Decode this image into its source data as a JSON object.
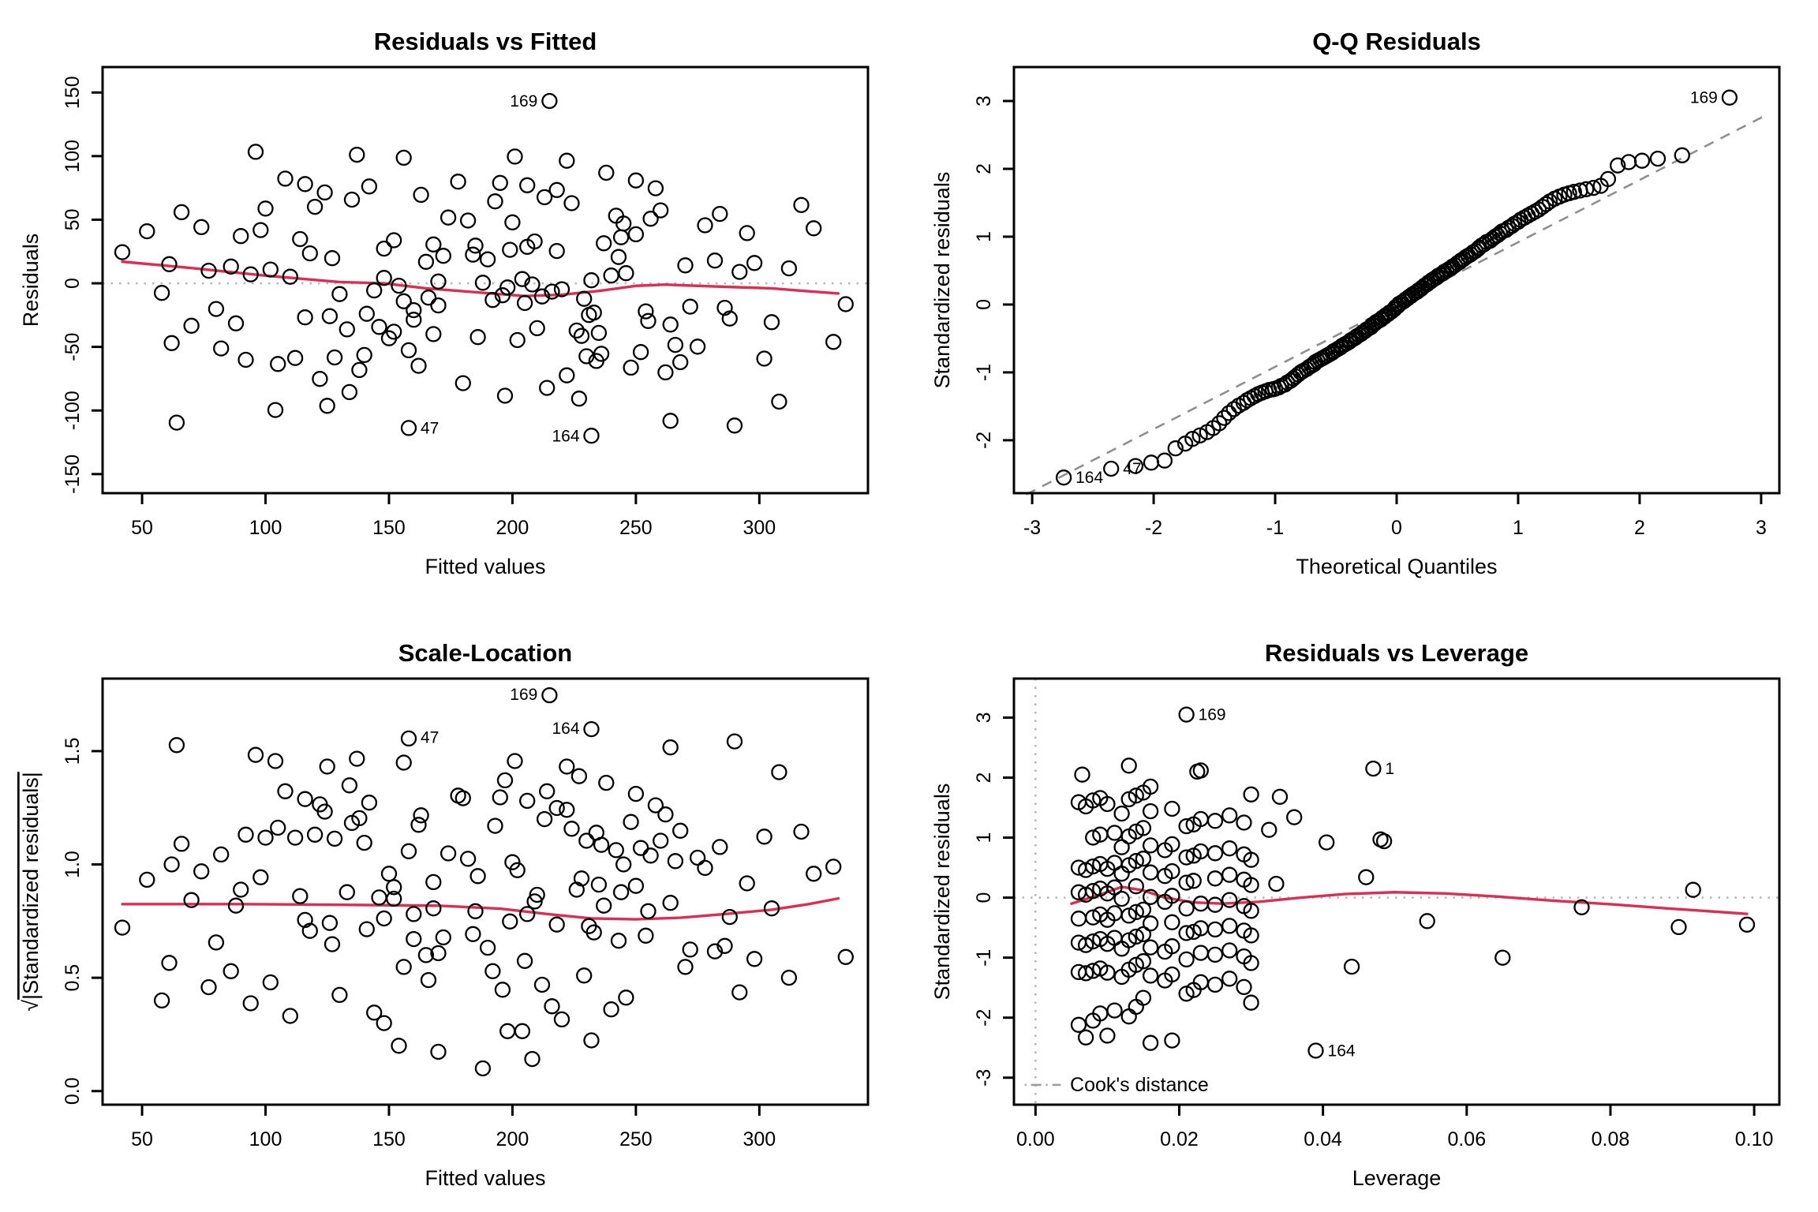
{
  "figure_title": "Linear model diagnostic plots (2x2)",
  "chart_data": {
    "type": "scatter",
    "n": 160,
    "note": "Four R lm() diagnostic panels sharing one set of observations. resid = std_resid * residual_scale_sigma; scale_location_y = sqrt(|std_resid|); qq pairs sorted std_resid with qq_theoretical_quantiles.",
    "residual_scale_sigma": 47,
    "colors": {
      "point": "#000000",
      "smooth": "#DE2D55",
      "reference": "#b9b9b9",
      "qq_line": "#8f8f8f",
      "cooks_legend": "#9d9d9d"
    },
    "observations": {
      "fitted": [
        232,
        288,
        42,
        215,
        160,
        118,
        96,
        255,
        184,
        137,
        305,
        172,
        201,
        88,
        243,
        156,
        264,
        127,
        222,
        70,
        190,
        238,
        146,
        282,
        108,
        210,
        165,
        250,
        133,
        298,
        178,
        226,
        61,
        195,
        152,
        270,
        116,
        235,
        86,
        206,
        168,
        312,
        142,
        228,
        102,
        258,
        186,
        77,
        218,
        150,
        292,
        124,
        202,
        246,
        163,
        330,
        94,
        213,
        62,
        240,
        135,
        266,
        110,
        193,
        275,
        148,
        224,
        82,
        204,
        317,
        158,
        232,
        120,
        252,
        170,
        100,
        236,
        188,
        260,
        140,
        208,
        66,
        230,
        154,
        284,
        128,
        198,
        242,
        112,
        220,
        174,
        302,
        144,
        256,
        92,
        216,
        182,
        234,
        58,
        200,
        268,
        130,
        245,
        105,
        196,
        278,
        162,
        212,
        74,
        248,
        166,
        322,
        138,
        229,
        98,
        262,
        192,
        52,
        222,
        156,
        295,
        122,
        205,
        250,
        180,
        335,
        90,
        214,
        170,
        244,
        134,
        272,
        114,
        197,
        286,
        152,
        227,
        80,
        209,
        308,
        160,
        237,
        125,
        254,
        168,
        104,
        233,
        185,
        264,
        141,
        206,
        64,
        231,
        148,
        290,
        126,
        199,
        158,
        116,
        218
      ],
      "std_resid": [
        -2.55,
        -0.59,
        0.52,
        3.05,
        -0.61,
        0.5,
        2.2,
        -0.63,
        0.48,
        2.15,
        -0.65,
        0.46,
        2.12,
        -0.67,
        0.44,
        2.1,
        -0.69,
        0.42,
        2.05,
        -0.71,
        0.4,
        1.85,
        -0.73,
        0.38,
        1.75,
        -0.75,
        0.36,
        1.72,
        -0.77,
        0.34,
        1.7,
        -0.79,
        0.32,
        1.68,
        -0.81,
        0.3,
        1.66,
        -0.83,
        0.28,
        1.64,
        -0.85,
        0.25,
        1.62,
        -0.88,
        0.23,
        1.59,
        -0.9,
        0.21,
        1.56,
        -0.92,
        0.19,
        1.52,
        -0.95,
        0.17,
        1.48,
        -0.98,
        0.15,
        1.44,
        -1.0,
        0.13,
        1.4,
        -1.03,
        0.11,
        1.37,
        -1.06,
        0.09,
        1.34,
        -1.09,
        0.07,
        1.31,
        -1.12,
        0.05,
        1.28,
        -1.15,
        0.03,
        1.25,
        -1.18,
        0.01,
        1.22,
        -1.2,
        -0.02,
        1.19,
        -1.22,
        -0.04,
        1.16,
        -1.24,
        -0.07,
        1.13,
        -1.25,
        -0.1,
        1.1,
        -1.26,
        -0.12,
        1.08,
        -1.28,
        -0.14,
        1.05,
        -1.3,
        -0.16,
        1.02,
        -1.32,
        -0.18,
        1.0,
        -1.35,
        -0.2,
        0.97,
        -1.38,
        -0.22,
        0.94,
        -1.41,
        -0.24,
        0.92,
        -1.45,
        -0.26,
        0.89,
        -1.49,
        -0.28,
        0.87,
        -1.54,
        -0.3,
        0.84,
        -1.6,
        -0.33,
        0.82,
        -1.67,
        -0.35,
        0.79,
        -1.75,
        -0.37,
        0.77,
        -1.82,
        -0.39,
        0.74,
        -1.88,
        -0.41,
        0.72,
        -1.93,
        -0.43,
        0.7,
        -1.98,
        -0.45,
        0.67,
        -2.05,
        -0.47,
        0.65,
        -2.12,
        -0.49,
        0.63,
        -2.3,
        -0.51,
        0.61,
        -2.33,
        -0.53,
        0.58,
        -2.38,
        -0.55,
        0.56,
        -2.42,
        -0.57,
        0.54
      ],
      "leverage": [
        0.039,
        0.021,
        0.008,
        0.021,
        0.015,
        0.006,
        0.013,
        0.03,
        0.01,
        0.047,
        0.014,
        0.007,
        0.023,
        0.011,
        0.019,
        0.0225,
        0.009,
        0.016,
        0.0065,
        0.013,
        0.012,
        0.016,
        0.008,
        0.027,
        0.015,
        0.006,
        0.018,
        0.03,
        0.01,
        0.046,
        0.014,
        0.007,
        0.025,
        0.034,
        0.019,
        0.029,
        0.009,
        0.016,
        0.022,
        0.013,
        0.012,
        0.021,
        0.008,
        0.027,
        0.0335,
        0.006,
        0.018,
        0.03,
        0.01,
        0.023,
        0.014,
        0.007,
        0.025,
        0.011,
        0.019,
        0.029,
        0.009,
        0.016,
        0.065,
        0.0915,
        0.012,
        0.021,
        0.008,
        0.027,
        0.015,
        0.006,
        0.036,
        0.03,
        0.01,
        0.023,
        0.014,
        0.007,
        0.025,
        0.044,
        0.019,
        0.029,
        0.009,
        0.016,
        0.022,
        0.013,
        0.012,
        0.021,
        0.008,
        0.027,
        0.015,
        0.006,
        0.018,
        0.0325,
        0.01,
        0.023,
        0.014,
        0.007,
        0.025,
        0.011,
        0.019,
        0.029,
        0.009,
        0.016,
        0.076,
        0.013,
        0.012,
        0.021,
        0.008,
        0.027,
        0.015,
        0.048,
        0.018,
        0.03,
        0.0485,
        0.023,
        0.014,
        0.0405,
        0.025,
        0.011,
        0.019,
        0.029,
        0.009,
        0.016,
        0.022,
        0.013,
        0.012,
        0.021,
        0.008,
        0.027,
        0.015,
        0.006,
        0.018,
        0.03,
        0.01,
        0.023,
        0.014,
        0.0545,
        0.025,
        0.011,
        0.019,
        0.029,
        0.009,
        0.016,
        0.022,
        0.013,
        0.099,
        0.021,
        0.008,
        0.027,
        0.015,
        0.006,
        0.0895,
        0.03,
        0.01,
        0.023,
        0.014,
        0.007,
        0.025,
        0.011,
        0.019,
        0.029,
        0.009,
        0.016,
        0.022,
        0.013
      ]
    },
    "qq_theoretical_quantiles": [
      -2.74,
      -2.35,
      -2.15,
      -2.02,
      -1.91,
      -1.82,
      -1.74,
      -1.68,
      -1.62,
      -1.56,
      -1.51,
      -1.46,
      -1.42,
      -1.38,
      -1.34,
      -1.3,
      -1.26,
      -1.23,
      -1.2,
      -1.17,
      -1.14,
      -1.11,
      -1.08,
      -1.05,
      -1.02,
      -1.0,
      -0.97,
      -0.95,
      -0.92,
      -0.9,
      -0.87,
      -0.85,
      -0.83,
      -0.81,
      -0.79,
      -0.77,
      -0.74,
      -0.72,
      -0.7,
      -0.68,
      -0.67,
      -0.65,
      -0.63,
      -0.61,
      -0.59,
      -0.57,
      -0.55,
      -0.53,
      -0.52,
      -0.5,
      -0.48,
      -0.46,
      -0.45,
      -0.43,
      -0.41,
      -0.39,
      -0.38,
      -0.36,
      -0.34,
      -0.33,
      -0.31,
      -0.29,
      -0.28,
      -0.26,
      -0.25,
      -0.23,
      -0.21,
      -0.2,
      -0.18,
      -0.17,
      -0.15,
      -0.13,
      -0.12,
      -0.1,
      -0.09,
      -0.07,
      -0.06,
      -0.04,
      -0.02,
      -0.01,
      0.01,
      0.02,
      0.04,
      0.06,
      0.07,
      0.09,
      0.1,
      0.12,
      0.13,
      0.15,
      0.17,
      0.18,
      0.2,
      0.21,
      0.23,
      0.25,
      0.26,
      0.28,
      0.29,
      0.31,
      0.33,
      0.34,
      0.36,
      0.38,
      0.39,
      0.41,
      0.43,
      0.45,
      0.46,
      0.48,
      0.5,
      0.52,
      0.53,
      0.55,
      0.57,
      0.59,
      0.61,
      0.63,
      0.65,
      0.67,
      0.68,
      0.7,
      0.72,
      0.74,
      0.77,
      0.79,
      0.81,
      0.83,
      0.85,
      0.87,
      0.9,
      0.92,
      0.95,
      0.97,
      1.0,
      1.02,
      1.05,
      1.08,
      1.11,
      1.14,
      1.17,
      1.2,
      1.23,
      1.26,
      1.3,
      1.34,
      1.38,
      1.42,
      1.46,
      1.51,
      1.56,
      1.62,
      1.68,
      1.74,
      1.82,
      1.91,
      2.02,
      2.15,
      2.35,
      2.74
    ],
    "panels": [
      {
        "key": "rvf",
        "title": "Residuals vs Fitted",
        "xlabel": "Fitted values",
        "ylabel": "Residuals",
        "x_source": "fitted",
        "y_source": "resid",
        "xlim": [
          34,
          344
        ],
        "ylim": [
          -165,
          170
        ],
        "xticks": [
          50,
          100,
          150,
          200,
          250,
          300
        ],
        "xtick_labels": [
          "50",
          "100",
          "150",
          "200",
          "250",
          "300"
        ],
        "yticks": [
          -150,
          -100,
          -50,
          0,
          50,
          100,
          150
        ],
        "ytick_labels": [
          "-150",
          "-100",
          "-50",
          "0",
          "50",
          "100",
          "150"
        ],
        "ref_lines": [
          {
            "type": "h",
            "v": 0,
            "dash": "dotted"
          }
        ],
        "smooth": [
          [
            42,
            17
          ],
          [
            70,
            12
          ],
          [
            100,
            6
          ],
          [
            130,
            1
          ],
          [
            148,
            0
          ],
          [
            165,
            -4
          ],
          [
            185,
            -7
          ],
          [
            205,
            -10
          ],
          [
            220,
            -9
          ],
          [
            235,
            -6
          ],
          [
            250,
            -2
          ],
          [
            262,
            -1
          ],
          [
            275,
            -2
          ],
          [
            290,
            -3
          ],
          [
            305,
            -4
          ],
          [
            318,
            -6
          ],
          [
            332,
            -8
          ]
        ],
        "annotations": [
          {
            "label": "169",
            "x": 215,
            "y": 143.4,
            "side": "left"
          },
          {
            "label": "47",
            "x": 158,
            "y": -113.7,
            "side": "right"
          },
          {
            "label": "164",
            "x": 232,
            "y": -119.9,
            "side": "left"
          }
        ]
      },
      {
        "key": "qq",
        "title": "Q-Q Residuals",
        "xlabel": "Theoretical Quantiles",
        "ylabel": "Standardized residuals",
        "x_source": "qq_x",
        "y_source": "std_sorted",
        "xlim": [
          -3.15,
          3.15
        ],
        "ylim": [
          -2.78,
          3.5
        ],
        "xticks": [
          -3,
          -2,
          -1,
          0,
          1,
          2,
          3
        ],
        "xtick_labels": [
          "-3",
          "-2",
          "-1",
          "0",
          "1",
          "2",
          "3"
        ],
        "yticks": [
          -2,
          -1,
          0,
          1,
          2,
          3
        ],
        "ytick_labels": [
          "-2",
          "-1",
          "0",
          "1",
          "2",
          "3"
        ],
        "ref_lines": [
          {
            "type": "seg",
            "x1": -3.05,
            "y1": -2.8,
            "x2": 3.05,
            "y2": 2.8,
            "dash": "dashed"
          }
        ],
        "smooth": null,
        "annotations": [
          {
            "label": "169",
            "x": 2.74,
            "y": 3.05,
            "side": "left"
          },
          {
            "label": "164",
            "x": -2.74,
            "y": -2.55,
            "side": "right"
          },
          {
            "label": "47",
            "x": -2.35,
            "y": -2.42,
            "side": "right"
          }
        ]
      },
      {
        "key": "sl",
        "title": "Scale-Location",
        "xlabel": "Fitted values",
        "ylabel": "√|Standardized residuals|",
        "ylabel_sqrt": true,
        "x_source": "fitted",
        "y_source": "sqrt_abs_std",
        "xlim": [
          34,
          344
        ],
        "ylim": [
          -0.06,
          1.82
        ],
        "xticks": [
          50,
          100,
          150,
          200,
          250,
          300
        ],
        "xtick_labels": [
          "50",
          "100",
          "150",
          "200",
          "250",
          "300"
        ],
        "yticks": [
          0,
          0.5,
          1,
          1.5
        ],
        "ytick_labels": [
          "0.0",
          "0.5",
          "1.0",
          "1.5"
        ],
        "ref_lines": [],
        "smooth": [
          [
            42,
            0.825
          ],
          [
            90,
            0.825
          ],
          [
            130,
            0.822
          ],
          [
            170,
            0.818
          ],
          [
            195,
            0.805
          ],
          [
            215,
            0.78
          ],
          [
            232,
            0.762
          ],
          [
            250,
            0.758
          ],
          [
            268,
            0.765
          ],
          [
            285,
            0.78
          ],
          [
            305,
            0.8
          ],
          [
            320,
            0.825
          ],
          [
            332,
            0.85
          ]
        ],
        "annotations": [
          {
            "label": "169",
            "x": 215,
            "y": 1.75,
            "side": "left"
          },
          {
            "label": "47",
            "x": 158,
            "y": 1.56,
            "side": "right"
          },
          {
            "label": "164",
            "x": 232,
            "y": 1.6,
            "side": "left"
          }
        ]
      },
      {
        "key": "rvl",
        "title": "Residuals vs Leverage",
        "xlabel": "Leverage",
        "ylabel": "Standardized residuals",
        "x_source": "leverage",
        "y_source": "std",
        "xlim": [
          -0.003,
          0.1035
        ],
        "ylim": [
          -3.45,
          3.65
        ],
        "xticks": [
          0,
          0.02,
          0.04,
          0.06,
          0.08,
          0.1
        ],
        "xtick_labels": [
          "0.00",
          "0.02",
          "0.04",
          "0.06",
          "0.08",
          "0.10"
        ],
        "yticks": [
          -3,
          -2,
          -1,
          0,
          1,
          2,
          3
        ],
        "ytick_labels": [
          "-3",
          "-2",
          "-1",
          "0",
          "1",
          "2",
          "3"
        ],
        "ref_lines": [
          {
            "type": "h",
            "v": 0,
            "dash": "dotted"
          },
          {
            "type": "v",
            "v": 0,
            "dash": "dotted"
          }
        ],
        "smooth": [
          [
            0.005,
            -0.1
          ],
          [
            0.009,
            0.05
          ],
          [
            0.012,
            0.18
          ],
          [
            0.015,
            0.12
          ],
          [
            0.018,
            0.0
          ],
          [
            0.022,
            -0.08
          ],
          [
            0.026,
            -0.1
          ],
          [
            0.031,
            -0.07
          ],
          [
            0.037,
            0.0
          ],
          [
            0.043,
            0.06
          ],
          [
            0.05,
            0.09
          ],
          [
            0.057,
            0.07
          ],
          [
            0.064,
            0.02
          ],
          [
            0.072,
            -0.05
          ],
          [
            0.08,
            -0.11
          ],
          [
            0.088,
            -0.18
          ],
          [
            0.099,
            -0.27
          ]
        ],
        "legend": {
          "label": "Cook's distance",
          "y": -3.12,
          "line_x": [
            -0.0015,
            0.0035
          ],
          "text_x": 0.0048
        },
        "annotations": [
          {
            "label": "169",
            "x": 0.021,
            "y": 3.05,
            "side": "right"
          },
          {
            "label": "1",
            "x": 0.047,
            "y": 2.15,
            "side": "right"
          },
          {
            "label": "164",
            "x": 0.039,
            "y": -2.55,
            "side": "right"
          }
        ]
      }
    ]
  }
}
